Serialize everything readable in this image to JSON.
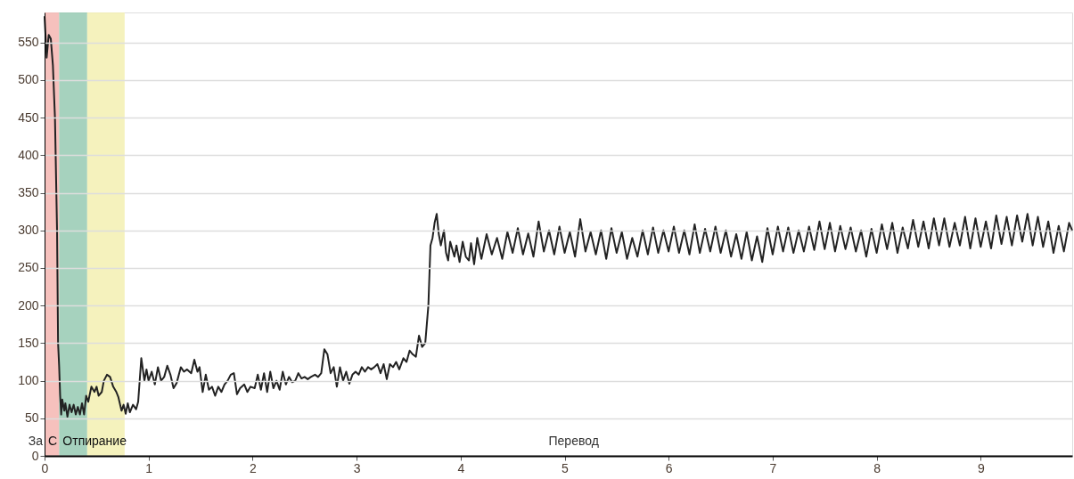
{
  "chart_data": {
    "type": "line",
    "xlim": [
      0,
      9.88
    ],
    "xticks": [
      0,
      1,
      2,
      3,
      4,
      5,
      6,
      7,
      8,
      9
    ],
    "ylim": [
      0,
      590
    ],
    "yticks": [
      0,
      50,
      100,
      150,
      200,
      250,
      300,
      350,
      400,
      450,
      500,
      550
    ],
    "grid": "y",
    "marker": "none",
    "line_style": "solid",
    "bands": [
      {
        "axis": "x",
        "from": 0,
        "to": 0.14,
        "label": "С",
        "color": "#f4b6b1"
      },
      {
        "axis": "x",
        "from": 0.14,
        "to": 0.41,
        "label": "Отпирание",
        "color": "#97cab3"
      },
      {
        "axis": "x",
        "from": 0.41,
        "to": 0.77,
        "color": "#f3f0b1"
      }
    ],
    "annotations": [
      "За",
      "Перевод"
    ],
    "series": [
      {
        "color": "#222222",
        "x": [
          0,
          0.02,
          0.04,
          0.06,
          0.08,
          0.1,
          0.12,
          0.13,
          0.14,
          0.15,
          0.16,
          0.17,
          0.19,
          0.2,
          0.22,
          0.24,
          0.26,
          0.28,
          0.3,
          0.32,
          0.34,
          0.36,
          0.38,
          0.4,
          0.42,
          0.45,
          0.48,
          0.5,
          0.52,
          0.55,
          0.57,
          0.6,
          0.63,
          0.66,
          0.69,
          0.71,
          0.74,
          0.76,
          0.78,
          0.8,
          0.82,
          0.85,
          0.88,
          0.9,
          0.93,
          0.96,
          0.98,
          1.0,
          1.03,
          1.06,
          1.09,
          1.12,
          1.15,
          1.18,
          1.21,
          1.24,
          1.27,
          1.31,
          1.34,
          1.37,
          1.41,
          1.44,
          1.47,
          1.49,
          1.52,
          1.55,
          1.58,
          1.61,
          1.64,
          1.67,
          1.7,
          1.73,
          1.76,
          1.79,
          1.82,
          1.85,
          1.88,
          1.92,
          1.95,
          1.98,
          2.02,
          2.05,
          2.08,
          2.11,
          2.14,
          2.17,
          2.2,
          2.23,
          2.26,
          2.29,
          2.32,
          2.35,
          2.38,
          2.41,
          2.44,
          2.47,
          2.5,
          2.53,
          2.56,
          2.6,
          2.63,
          2.66,
          2.69,
          2.72,
          2.75,
          2.78,
          2.81,
          2.84,
          2.87,
          2.9,
          2.93,
          2.96,
          2.99,
          3.02,
          3.05,
          3.08,
          3.11,
          3.14,
          3.17,
          3.2,
          3.23,
          3.26,
          3.29,
          3.32,
          3.35,
          3.38,
          3.41,
          3.45,
          3.48,
          3.51,
          3.54,
          3.57,
          3.6,
          3.63,
          3.66,
          3.69,
          3.71,
          3.73,
          3.75,
          3.77,
          3.79,
          3.81,
          3.84,
          3.86,
          3.88,
          3.9,
          3.92,
          3.94,
          3.96,
          3.99,
          4.02,
          4.05,
          4.08,
          4.1,
          4.13,
          4.16,
          4.2,
          4.25,
          4.3,
          4.35,
          4.4,
          4.45,
          4.5,
          4.55,
          4.6,
          4.65,
          4.7,
          4.75,
          4.8,
          4.85,
          4.9,
          4.95,
          5.0,
          5.05,
          5.1,
          5.15,
          5.2,
          5.25,
          5.3,
          5.35,
          5.4,
          5.45,
          5.5,
          5.55,
          5.6,
          5.65,
          5.7,
          5.75,
          5.8,
          5.85,
          5.9,
          5.95,
          6.0,
          6.05,
          6.1,
          6.15,
          6.2,
          6.25,
          6.3,
          6.35,
          6.4,
          6.45,
          6.5,
          6.55,
          6.6,
          6.65,
          6.7,
          6.75,
          6.8,
          6.85,
          6.9,
          6.95,
          7.0,
          7.05,
          7.1,
          7.15,
          7.2,
          7.25,
          7.3,
          7.35,
          7.4,
          7.45,
          7.5,
          7.55,
          7.6,
          7.65,
          7.7,
          7.75,
          7.8,
          7.85,
          7.9,
          7.95,
          8.0,
          8.05,
          8.1,
          8.15,
          8.2,
          8.25,
          8.3,
          8.35,
          8.4,
          8.45,
          8.5,
          8.55,
          8.6,
          8.65,
          8.7,
          8.75,
          8.8,
          8.85,
          8.9,
          8.95,
          9.0,
          9.05,
          9.1,
          9.15,
          9.2,
          9.25,
          9.3,
          9.35,
          9.4,
          9.45,
          9.5,
          9.55,
          9.6,
          9.65,
          9.7,
          9.75,
          9.8,
          9.85,
          9.88
        ],
        "values": [
          585,
          530,
          560,
          555,
          520,
          450,
          300,
          150,
          120,
          80,
          55,
          75,
          60,
          70,
          52,
          68,
          58,
          68,
          55,
          65,
          55,
          70,
          55,
          80,
          72,
          92,
          85,
          92,
          80,
          85,
          100,
          108,
          105,
          92,
          85,
          78,
          60,
          68,
          56,
          70,
          58,
          68,
          62,
          72,
          130,
          100,
          115,
          100,
          112,
          95,
          118,
          100,
          105,
          120,
          108,
          90,
          97,
          118,
          112,
          115,
          110,
          128,
          112,
          118,
          85,
          108,
          88,
          92,
          80,
          92,
          85,
          95,
          100,
          108,
          110,
          82,
          90,
          95,
          85,
          92,
          90,
          108,
          88,
          110,
          85,
          112,
          90,
          100,
          88,
          112,
          95,
          105,
          98,
          100,
          110,
          103,
          105,
          102,
          105,
          108,
          105,
          110,
          142,
          135,
          110,
          118,
          92,
          118,
          100,
          112,
          96,
          108,
          112,
          108,
          118,
          112,
          118,
          115,
          118,
          122,
          110,
          122,
          102,
          122,
          118,
          125,
          115,
          130,
          125,
          140,
          135,
          132,
          160,
          145,
          150,
          200,
          280,
          290,
          310,
          322,
          295,
          280,
          300,
          270,
          260,
          285,
          275,
          265,
          280,
          258,
          285,
          265,
          260,
          283,
          255,
          290,
          262,
          295,
          268,
          290,
          262,
          298,
          270,
          303,
          268,
          296,
          265,
          312,
          272,
          300,
          268,
          305,
          270,
          298,
          265,
          315,
          272,
          298,
          268,
          300,
          262,
          303,
          270,
          298,
          262,
          290,
          265,
          300,
          268,
          304,
          270,
          300,
          272,
          305,
          270,
          300,
          268,
          308,
          270,
          302,
          272,
          305,
          270,
          300,
          265,
          295,
          262,
          298,
          260,
          292,
          258,
          303,
          268,
          305,
          272,
          304,
          270,
          300,
          272,
          305,
          274,
          312,
          275,
          310,
          272,
          306,
          275,
          304,
          272,
          300,
          265,
          302,
          270,
          308,
          275,
          310,
          270,
          304,
          276,
          314,
          278,
          312,
          276,
          316,
          280,
          316,
          278,
          310,
          280,
          318,
          276,
          316,
          278,
          312,
          276,
          320,
          282,
          318,
          280,
          320,
          285,
          322,
          280,
          318,
          278,
          312,
          270,
          306,
          272,
          310,
          300
        ]
      }
    ]
  }
}
